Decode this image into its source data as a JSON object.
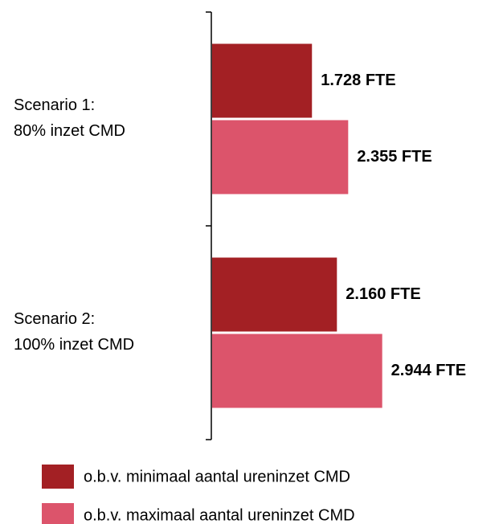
{
  "chart_data": {
    "type": "bar",
    "orientation": "horizontal",
    "categories": [
      "Scenario 1:\n80% inzet CMD",
      "Scenario 2:\n100% inzet CMD"
    ],
    "series": [
      {
        "name": "o.b.v. minimaal aantal ureninzet CMD",
        "color": "#a32024",
        "values": [
          1728,
          2160
        ],
        "value_labels": [
          "1.728 FTE",
          "2.160 FTE"
        ]
      },
      {
        "name": "o.b.v. maximaal aantal ureninzet CMD",
        "color": "#dc546b",
        "values": [
          2355,
          2944
        ],
        "value_labels": [
          "2.355 FTE",
          "2.944 FTE"
        ]
      }
    ]
  }
}
